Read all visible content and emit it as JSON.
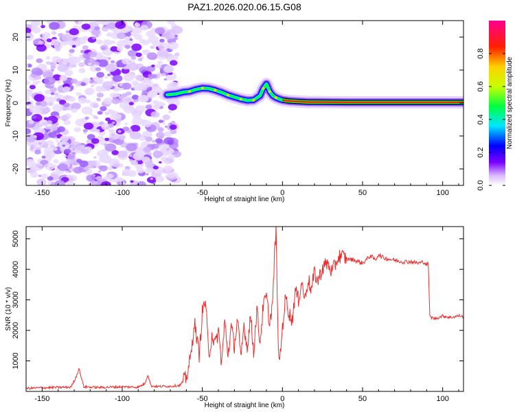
{
  "title": "PAZ1.2026.020.06.15.G08",
  "chart_data": [
    {
      "type": "heatmap",
      "name": "spectrogram",
      "xlabel": "Height of straight line (km)",
      "ylabel": "Frequency (Hz)",
      "xlim": [
        -160,
        113
      ],
      "ylim": [
        -25,
        25
      ],
      "xticks": [
        -150,
        -100,
        -50,
        0,
        50,
        100
      ],
      "yticks": [
        -20,
        -10,
        0,
        10,
        20
      ],
      "noise_region_x": [
        -160,
        -68
      ],
      "signal_track": {
        "description_values": "center frequency of the dominant spectral line versus height",
        "x": [
          -72,
          -66,
          -62,
          -58,
          -54,
          -50,
          -46,
          -42,
          -38,
          -34,
          -30,
          -26,
          -22,
          -18,
          -14,
          -12,
          -10,
          -8,
          -6,
          -4,
          -2,
          0,
          4,
          8,
          12,
          16,
          20,
          40,
          60,
          80,
          100,
          113
        ],
        "y": [
          2.5,
          2.8,
          3.3,
          3.5,
          4.1,
          4.5,
          4.4,
          3.9,
          3.2,
          2.4,
          1.8,
          1.2,
          0.8,
          0.9,
          2.2,
          4.4,
          5.8,
          3.5,
          2.2,
          1.6,
          1.2,
          0.9,
          0.6,
          0.5,
          0.4,
          0.3,
          0.3,
          0.2,
          0.2,
          0.2,
          0.2,
          0.2
        ]
      },
      "colorbar": {
        "label": "Normalized spectral amplitude",
        "range": [
          0,
          1
        ],
        "ticks": [
          "0.0",
          "0.2",
          "0.4",
          "0.6",
          "0.8"
        ],
        "colors": [
          "#ffffff",
          "#d9b8ff",
          "#7b00ff",
          "#0000ff",
          "#00e5ff",
          "#00ff40",
          "#c8ff00",
          "#ffd000",
          "#ff2000",
          "#ff0090"
        ]
      }
    },
    {
      "type": "line",
      "name": "snr",
      "xlabel": "Height of straight line (km)",
      "ylabel": "SNR (10 * v/v)",
      "xlim": [
        -160,
        113
      ],
      "ylim": [
        0,
        5400
      ],
      "xticks": [
        -150,
        -100,
        -50,
        0,
        50,
        100
      ],
      "yticks": [
        1000,
        2000,
        3000,
        4000,
        5000
      ],
      "color": "#ee2b2b",
      "series": [
        {
          "name": "SNR",
          "x": [
            -160,
            -150,
            -140,
            -132,
            -129,
            -127,
            -124,
            -115,
            -100,
            -90,
            -86,
            -84,
            -82,
            -78,
            -70,
            -64,
            -60,
            -57,
            -55,
            -52,
            -50,
            -48,
            -46,
            -44,
            -42,
            -40,
            -38,
            -36,
            -34,
            -32,
            -30,
            -28,
            -26,
            -24,
            -22,
            -20,
            -18,
            -16,
            -14,
            -12,
            -10,
            -8,
            -6,
            -5,
            -4,
            -3,
            -2,
            0,
            2,
            4,
            6,
            8,
            10,
            12,
            14,
            16,
            18,
            20,
            22,
            25,
            28,
            31,
            34,
            36,
            40,
            45,
            50,
            55,
            58,
            60,
            62,
            65,
            70,
            75,
            80,
            85,
            88,
            90,
            91,
            92,
            95,
            100,
            105,
            110,
            113
          ],
          "y": [
            100,
            120,
            130,
            140,
            450,
            750,
            150,
            130,
            150,
            140,
            250,
            550,
            180,
            160,
            170,
            200,
            450,
            1200,
            2300,
            1200,
            2600,
            3000,
            1100,
            1900,
            1500,
            2000,
            900,
            2300,
            1200,
            2100,
            1500,
            2400,
            1000,
            2200,
            1400,
            2500,
            1300,
            2700,
            1600,
            2800,
            3100,
            2200,
            3000,
            4400,
            5300,
            2400,
            800,
            2100,
            3100,
            2600,
            2300,
            3300,
            3000,
            3600,
            3000,
            3700,
            3300,
            3900,
            3600,
            4050,
            4200,
            3900,
            4300,
            4450,
            4350,
            4300,
            4200,
            4450,
            4300,
            4500,
            4400,
            4350,
            4300,
            4250,
            4250,
            4200,
            4250,
            4150,
            4200,
            2450,
            2380,
            2470,
            2420,
            2480,
            2450
          ]
        }
      ]
    }
  ]
}
